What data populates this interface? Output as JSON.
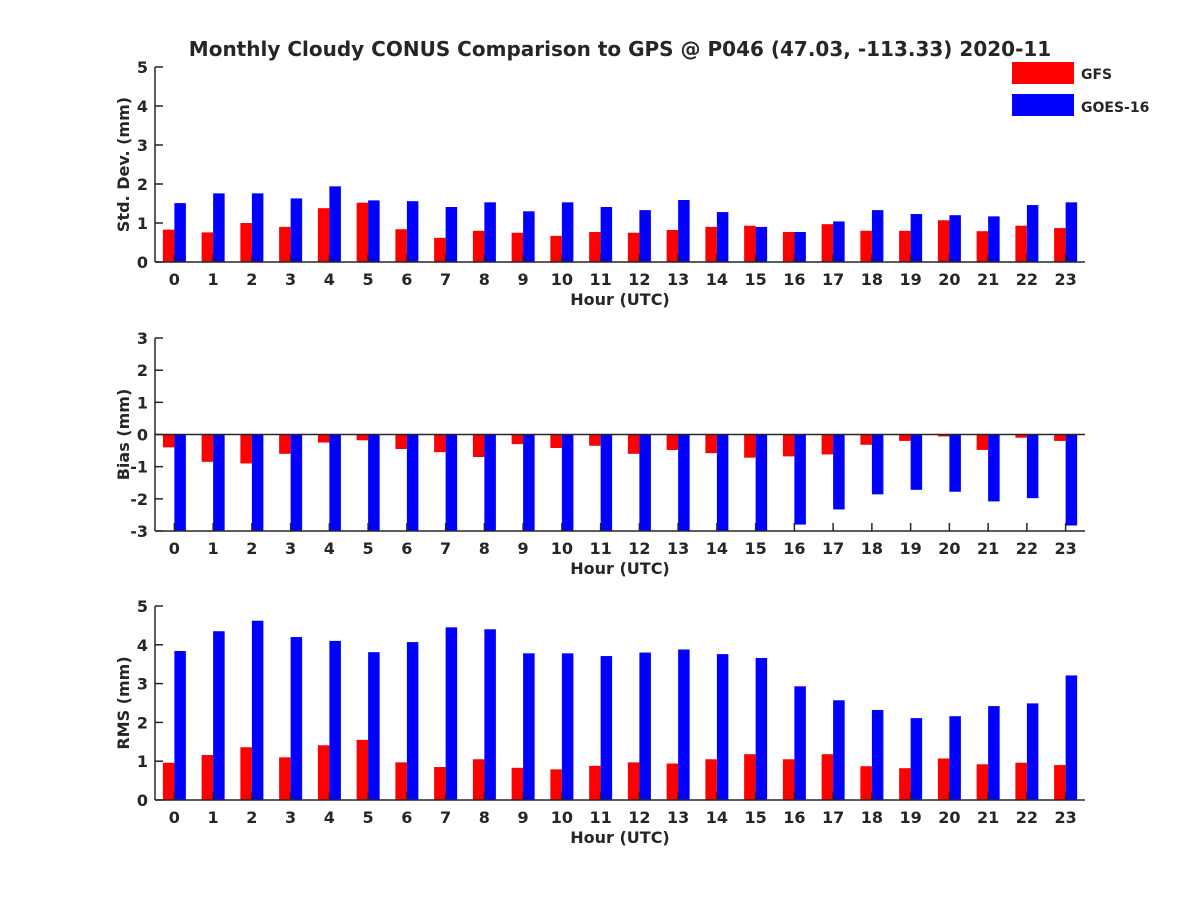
{
  "chart_data": {
    "type": "bar",
    "title": "Monthly Cloudy CONUS Comparison to GPS @ P046 (47.03, -113.33) 2020-11",
    "legend": {
      "placement": "top-right",
      "entries": [
        "GFS",
        "GOES-16"
      ]
    },
    "colors": {
      "GFS": "#ff0000",
      "GOES-16": "#0000ff"
    },
    "categories": [
      "0",
      "1",
      "2",
      "3",
      "4",
      "5",
      "6",
      "7",
      "8",
      "9",
      "10",
      "11",
      "12",
      "13",
      "14",
      "15",
      "16",
      "17",
      "18",
      "19",
      "20",
      "21",
      "22",
      "23"
    ],
    "panels": [
      {
        "ylabel": "Std. Dev. (mm)",
        "xlabel": "Hour (UTC)",
        "ylim": [
          0,
          5
        ],
        "yticks": [
          "0",
          "1",
          "2",
          "3",
          "4",
          "5"
        ],
        "series": [
          {
            "name": "GFS",
            "values": [
              0.83,
              0.76,
              1.0,
              0.9,
              1.38,
              1.52,
              0.84,
              0.62,
              0.8,
              0.75,
              0.67,
              0.77,
              0.75,
              0.82,
              0.9,
              0.93,
              0.77,
              0.97,
              0.8,
              0.8,
              1.07,
              0.79,
              0.93,
              0.87
            ]
          },
          {
            "name": "GOES-16",
            "values": [
              1.51,
              1.76,
              1.76,
              1.63,
              1.94,
              1.58,
              1.56,
              1.41,
              1.53,
              1.3,
              1.53,
              1.41,
              1.33,
              1.59,
              1.28,
              0.9,
              0.77,
              1.04,
              1.33,
              1.23,
              1.2,
              1.17,
              1.46,
              1.53
            ]
          }
        ]
      },
      {
        "ylabel": "Bias (mm)",
        "xlabel": "Hour (UTC)",
        "ylim": [
          -3,
          3
        ],
        "yticks": [
          "-3",
          "-2",
          "-1",
          "0",
          "1",
          "2",
          "3"
        ],
        "series": [
          {
            "name": "GFS",
            "values": [
              -0.4,
              -0.85,
              -0.9,
              -0.6,
              -0.25,
              -0.18,
              -0.45,
              -0.55,
              -0.7,
              -0.3,
              -0.42,
              -0.35,
              -0.6,
              -0.48,
              -0.58,
              -0.72,
              -0.68,
              -0.62,
              -0.32,
              -0.2,
              -0.06,
              -0.48,
              -0.1,
              -0.2
            ]
          },
          {
            "name": "GOES-16",
            "values": [
              -3.0,
              -3.0,
              -3.0,
              -3.0,
              -3.0,
              -3.0,
              -3.0,
              -3.0,
              -3.0,
              -3.0,
              -3.0,
              -3.0,
              -3.0,
              -3.0,
              -3.0,
              -3.0,
              -2.8,
              -2.33,
              -1.86,
              -1.72,
              -1.78,
              -2.08,
              -1.98,
              -2.83
            ]
          }
        ]
      },
      {
        "ylabel": "RMS (mm)",
        "xlabel": "Hour (UTC)",
        "ylim": [
          0,
          5
        ],
        "yticks": [
          "0",
          "1",
          "2",
          "3",
          "4",
          "5"
        ],
        "series": [
          {
            "name": "GFS",
            "values": [
              0.96,
              1.16,
              1.36,
              1.1,
              1.41,
              1.55,
              0.97,
              0.85,
              1.05,
              0.83,
              0.79,
              0.88,
              0.97,
              0.94,
              1.05,
              1.18,
              1.05,
              1.18,
              0.87,
              0.82,
              1.07,
              0.92,
              0.96,
              0.9
            ]
          },
          {
            "name": "GOES-16",
            "values": [
              3.84,
              4.35,
              4.62,
              4.2,
              4.1,
              3.81,
              4.07,
              4.45,
              4.4,
              3.78,
              3.78,
              3.71,
              3.8,
              3.88,
              3.76,
              3.66,
              2.93,
              2.57,
              2.32,
              2.11,
              2.16,
              2.42,
              2.49,
              3.21
            ]
          }
        ]
      }
    ]
  }
}
